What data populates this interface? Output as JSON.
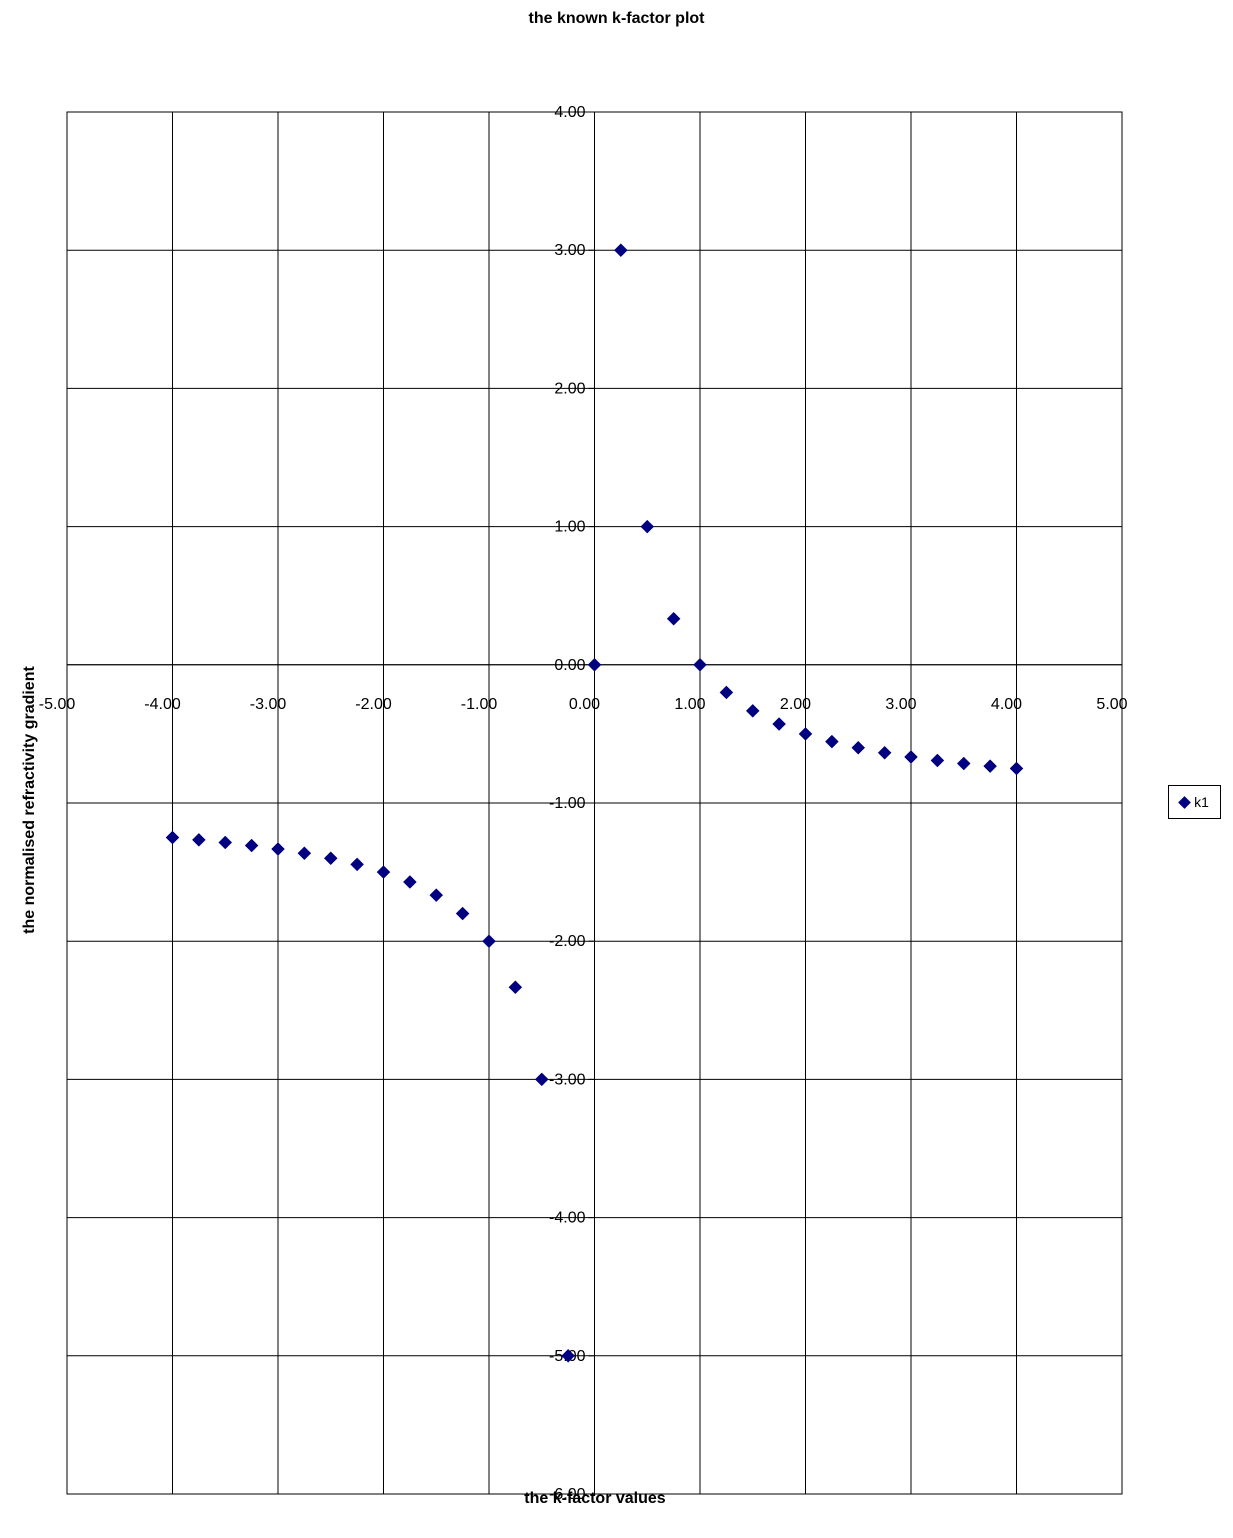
{
  "chart_data": {
    "type": "scatter",
    "title": "the known k-factor plot",
    "xlabel": "the k-factor values",
    "ylabel": "the normalised refractivity gradient",
    "xlim": [
      -5,
      5
    ],
    "ylim": [
      -6,
      4
    ],
    "x_ticks": [
      -5,
      -4,
      -3,
      -2,
      -1,
      0,
      1,
      2,
      3,
      4,
      5
    ],
    "y_ticks": [
      -6,
      -5,
      -4,
      -3,
      -2,
      -1,
      0,
      1,
      2,
      3,
      4
    ],
    "x_tick_labels": [
      "-5.00",
      "-4.00",
      "-3.00",
      "-2.00",
      "-1.00",
      "0.00",
      "1.00",
      "2.00",
      "3.00",
      "4.00",
      "5.00"
    ],
    "y_tick_labels": [
      "-6.00",
      "-5.00",
      "-4.00",
      "-3.00",
      "-2.00",
      "-1.00",
      "0.00",
      "1.00",
      "2.00",
      "3.00",
      "4.00"
    ],
    "grid": true,
    "legend_position": "right",
    "series": [
      {
        "name": "k1",
        "color": "#000080",
        "marker": "diamond",
        "points": [
          [
            -4.0,
            -1.25
          ],
          [
            -3.75,
            -1.2667
          ],
          [
            -3.5,
            -1.2857
          ],
          [
            -3.25,
            -1.3077
          ],
          [
            -3.0,
            -1.3333
          ],
          [
            -2.75,
            -1.3636
          ],
          [
            -2.5,
            -1.4
          ],
          [
            -2.25,
            -1.4444
          ],
          [
            -2.0,
            -1.5
          ],
          [
            -1.75,
            -1.5714
          ],
          [
            -1.5,
            -1.6667
          ],
          [
            -1.25,
            -1.8
          ],
          [
            -1.0,
            -2.0
          ],
          [
            -0.75,
            -2.3333
          ],
          [
            -0.5,
            -3.0
          ],
          [
            -0.25,
            -5.0
          ],
          [
            0.0,
            0.0
          ],
          [
            0.25,
            3.0
          ],
          [
            0.5,
            1.0
          ],
          [
            0.75,
            0.3333
          ],
          [
            1.0,
            0.0
          ],
          [
            1.25,
            -0.2
          ],
          [
            1.5,
            -0.3333
          ],
          [
            1.75,
            -0.4286
          ],
          [
            2.0,
            -0.5
          ],
          [
            2.25,
            -0.5556
          ],
          [
            2.5,
            -0.6
          ],
          [
            2.75,
            -0.6364
          ],
          [
            3.0,
            -0.6667
          ],
          [
            3.25,
            -0.6923
          ],
          [
            3.5,
            -0.7143
          ],
          [
            3.75,
            -0.7333
          ],
          [
            4.0,
            -0.75
          ]
        ]
      }
    ]
  }
}
